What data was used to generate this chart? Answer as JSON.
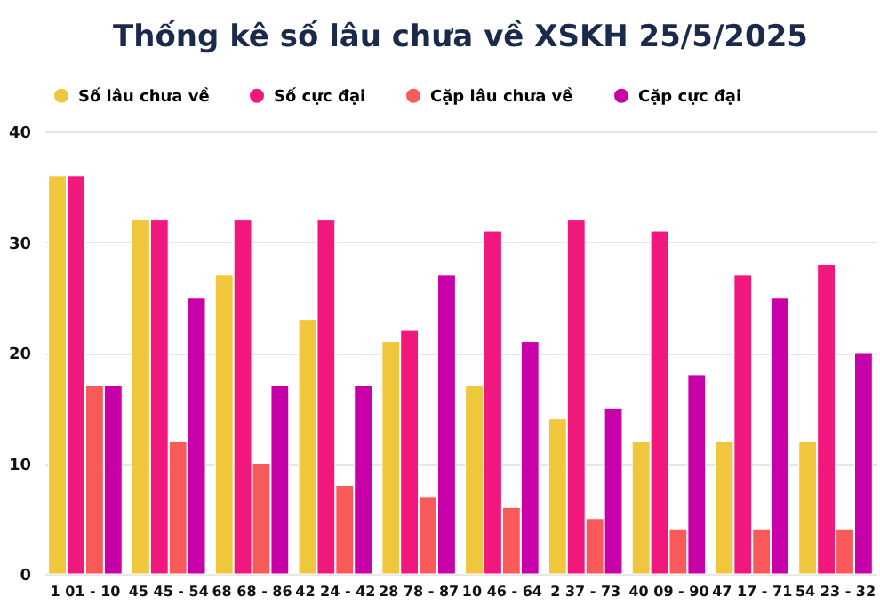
{
  "chart_data": {
    "type": "bar",
    "title": "Thống kê số lâu chưa về XSKH 25/5/2025",
    "categories": [
      "1 01 - 10",
      "45 45 - 54",
      "68 68 - 86",
      "42 24 - 42",
      "28 78 - 87",
      "10 46 - 64",
      "2 37 - 73",
      "40 09 - 90",
      "47 17 - 71",
      "54 23 - 32"
    ],
    "series": [
      {
        "name": "Số lâu chưa về",
        "color": "#f0c63c",
        "values": [
          36,
          32,
          27,
          23,
          21,
          17,
          14,
          12,
          12,
          12
        ]
      },
      {
        "name": "Số cực đại",
        "color": "#f0187c",
        "values": [
          36,
          32,
          32,
          32,
          22,
          31,
          32,
          31,
          27,
          28
        ]
      },
      {
        "name": "Cặp lâu chưa về",
        "color": "#f85a5a",
        "values": [
          17,
          12,
          10,
          8,
          7,
          6,
          5,
          4,
          4,
          4
        ]
      },
      {
        "name": "Cặp cực đại",
        "color": "#c800a8",
        "values": [
          17,
          25,
          17,
          17,
          27,
          21,
          15,
          18,
          25,
          20
        ]
      }
    ],
    "ylim": [
      0,
      40
    ],
    "yticks": [
      0,
      10,
      20,
      30,
      40
    ],
    "grid": "y",
    "legend": "top"
  }
}
